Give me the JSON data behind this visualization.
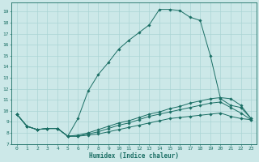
{
  "title": "",
  "xlabel": "Humidex (Indice chaleur)",
  "xlim": [
    -0.5,
    23.5
  ],
  "ylim": [
    7.0,
    19.8
  ],
  "yticks": [
    7,
    8,
    9,
    10,
    11,
    12,
    13,
    14,
    15,
    16,
    17,
    18,
    19
  ],
  "xticks": [
    0,
    1,
    2,
    3,
    4,
    5,
    6,
    7,
    8,
    9,
    10,
    11,
    12,
    13,
    14,
    15,
    16,
    17,
    18,
    19,
    20,
    21,
    22,
    23
  ],
  "bg_color": "#cce8e8",
  "line_color": "#1a6e64",
  "grid_color": "#aad4d4",
  "line0_x": [
    0,
    1,
    2,
    3,
    4,
    5,
    6,
    7,
    8,
    9,
    10,
    11,
    12,
    13,
    14,
    15,
    16,
    17,
    18,
    19,
    20,
    21,
    22,
    23
  ],
  "line0_y": [
    9.7,
    8.6,
    8.3,
    8.4,
    8.4,
    7.7,
    9.3,
    11.8,
    13.3,
    14.4,
    15.6,
    16.4,
    17.1,
    17.8,
    19.2,
    19.2,
    19.1,
    18.5,
    18.2,
    15.0,
    11.1,
    10.5,
    10.3,
    9.3
  ],
  "line1_x": [
    0,
    1,
    2,
    3,
    4,
    5,
    6,
    7,
    8,
    9,
    10,
    11,
    12,
    13,
    14,
    15,
    16,
    17,
    18,
    19,
    20,
    21,
    22,
    23
  ],
  "line1_y": [
    9.7,
    8.6,
    8.3,
    8.4,
    8.4,
    7.7,
    7.8,
    8.0,
    8.3,
    8.6,
    8.9,
    9.1,
    9.4,
    9.7,
    9.9,
    10.2,
    10.4,
    10.7,
    10.9,
    11.1,
    11.2,
    11.1,
    10.5,
    9.3
  ],
  "line2_x": [
    0,
    1,
    2,
    3,
    4,
    5,
    6,
    7,
    8,
    9,
    10,
    11,
    12,
    13,
    14,
    15,
    16,
    17,
    18,
    19,
    20,
    21,
    22,
    23
  ],
  "line2_y": [
    9.7,
    8.6,
    8.3,
    8.4,
    8.4,
    7.7,
    7.7,
    7.9,
    8.1,
    8.4,
    8.7,
    8.9,
    9.2,
    9.5,
    9.7,
    9.9,
    10.1,
    10.3,
    10.5,
    10.7,
    10.8,
    10.3,
    9.8,
    9.2
  ],
  "line3_x": [
    0,
    1,
    2,
    3,
    4,
    5,
    6,
    7,
    8,
    9,
    10,
    11,
    12,
    13,
    14,
    15,
    16,
    17,
    18,
    19,
    20,
    21,
    22,
    23
  ],
  "line3_y": [
    9.7,
    8.6,
    8.3,
    8.4,
    8.4,
    7.7,
    7.7,
    7.8,
    7.9,
    8.1,
    8.3,
    8.5,
    8.7,
    8.9,
    9.1,
    9.3,
    9.4,
    9.5,
    9.6,
    9.7,
    9.8,
    9.5,
    9.3,
    9.2
  ]
}
